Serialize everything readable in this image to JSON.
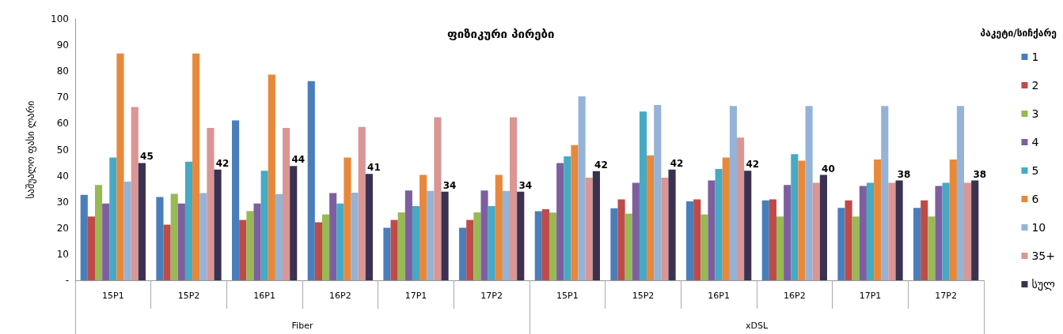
{
  "chart_data": {
    "type": "bar",
    "title": "ფიზიკური პირები",
    "ylabel": "საშუალო ფასი ლარი",
    "legend_title": "პაკეტი/სიჩქარე",
    "categories": [
      "15P1",
      "15P2",
      "16P1",
      "16P2",
      "17P1",
      "17P2",
      "15P1",
      "15P2",
      "16P1",
      "16P2",
      "17P1",
      "17P2"
    ],
    "annotations": [
      "Fiber",
      "xDSL"
    ],
    "series": [
      {
        "name": "1",
        "color": "#4a7ebb",
        "values": [
          32.7,
          31.9,
          61.2,
          76.2,
          20.1,
          20.1,
          26.4,
          27.6,
          30.2,
          30.6,
          27.7,
          27.7
        ]
      },
      {
        "name": "2",
        "color": "#be4b48",
        "values": [
          24.4,
          21.3,
          23.1,
          22.2,
          23.1,
          23.1,
          27.2,
          31,
          31,
          31,
          30.6,
          30.6
        ]
      },
      {
        "name": "3",
        "color": "#98b954",
        "values": [
          36.5,
          33.1,
          26.5,
          25.2,
          26,
          26,
          25.9,
          25.5,
          25.2,
          24.4,
          24.4,
          24.4
        ]
      },
      {
        "name": "4",
        "color": "#7d5fa0",
        "values": [
          29.4,
          29.4,
          29.4,
          33.4,
          34.4,
          34.4,
          44.9,
          37.3,
          38.2,
          36.5,
          36.1,
          36.1
        ]
      },
      {
        "name": "5",
        "color": "#46aac5",
        "values": [
          47,
          45.4,
          41.9,
          29.4,
          28.4,
          28.4,
          47.4,
          64.6,
          42.6,
          48.3,
          37.3,
          37.3
        ]
      },
      {
        "name": "6",
        "color": "#e8883a",
        "values": [
          86.8,
          86.8,
          78.7,
          47,
          40.3,
          40.3,
          51.7,
          47.8,
          47,
          45.8,
          46.2,
          46.2
        ]
      },
      {
        "name": "10",
        "color": "#95b3d7",
        "values": [
          37.8,
          33.4,
          33,
          33.5,
          34.2,
          34.2,
          70.4,
          67.1,
          66.7,
          66.7,
          66.7,
          66.7
        ]
      },
      {
        "name": "35+",
        "color": "#d99694",
        "values": [
          66.3,
          58.3,
          58.3,
          58.7,
          62.4,
          62.4,
          39.3,
          39.3,
          54.6,
          37.3,
          37.3,
          37.3
        ]
      },
      {
        "name": "სულ",
        "color": "#3b3151",
        "values": [
          44.9,
          42.4,
          43.7,
          40.7,
          33.9,
          33.9,
          41.8,
          42.4,
          41.9,
          40.3,
          38.2,
          38.2
        ],
        "value_labels": [
          "45",
          "42",
          "44",
          "41",
          "34",
          "34",
          "42",
          "42",
          "42",
          "40",
          "38",
          "38"
        ]
      }
    ],
    "ylim": [
      0,
      100
    ],
    "yticks": [
      {
        "value": 0,
        "label": "-"
      },
      10,
      20,
      30,
      40,
      50,
      60,
      70,
      80,
      90,
      100
    ],
    "grid": false,
    "legend": "right"
  }
}
